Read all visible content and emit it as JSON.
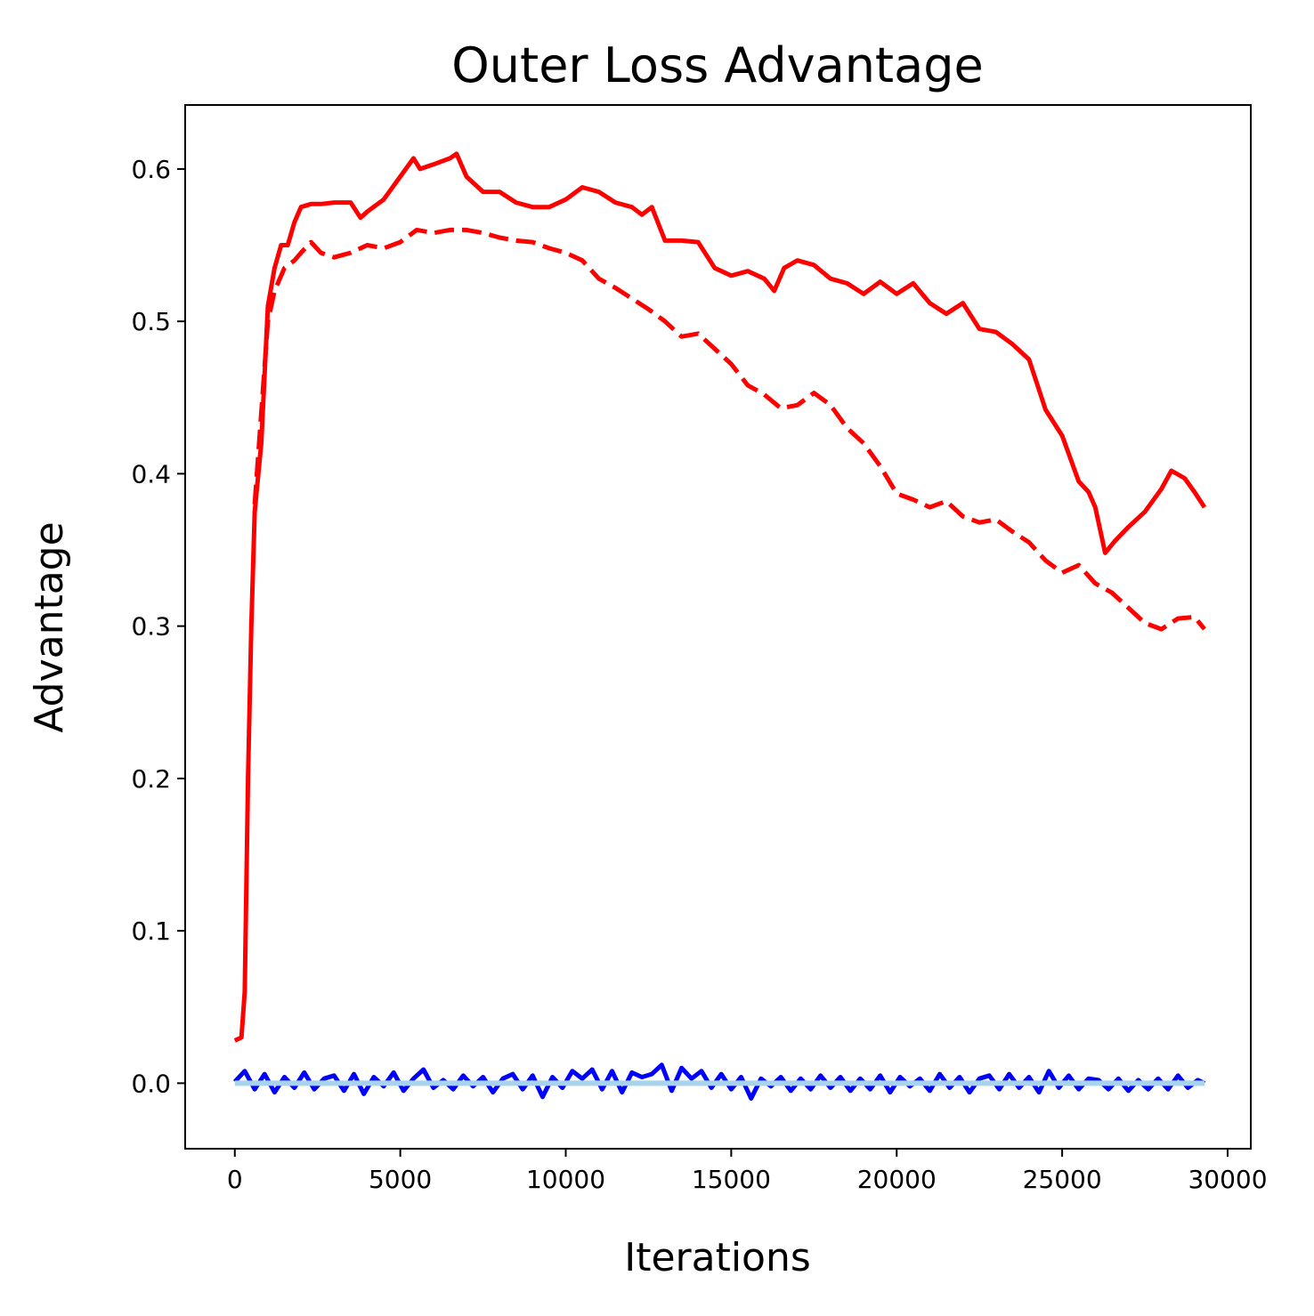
{
  "chart_data": {
    "type": "line",
    "title": "Outer Loss Advantage",
    "xlabel": "Iterations",
    "ylabel": "Advantage",
    "xlim": [
      -1500,
      30700
    ],
    "ylim": [
      -0.043,
      0.642
    ],
    "xticks": [
      0,
      5000,
      10000,
      15000,
      20000,
      25000,
      30000
    ],
    "yticks": [
      0.0,
      0.1,
      0.2,
      0.3,
      0.4,
      0.5,
      0.6
    ],
    "xtick_labels": [
      "0",
      "5000",
      "10000",
      "15000",
      "20000",
      "25000",
      "30000"
    ],
    "ytick_labels": [
      "0.0",
      "0.1",
      "0.2",
      "0.3",
      "0.4",
      "0.5",
      "0.6"
    ],
    "grid": false,
    "legend": "none",
    "series": [
      {
        "style": "solid",
        "color": "#ff0000",
        "x": [
          0,
          200,
          300,
          400,
          500,
          600,
          800,
          1000,
          1200,
          1400,
          1600,
          1800,
          2000,
          2300,
          2600,
          3000,
          3500,
          3800,
          4000,
          4500,
          5000,
          5400,
          5600,
          6000,
          6500,
          6700,
          7000,
          7500,
          8000,
          8500,
          9000,
          9500,
          10000,
          10500,
          11000,
          11500,
          12000,
          12300,
          12600,
          13000,
          13500,
          14000,
          14500,
          15000,
          15500,
          16000,
          16300,
          16600,
          17000,
          17500,
          18000,
          18500,
          19000,
          19500,
          20000,
          20500,
          21000,
          21500,
          22000,
          22500,
          23000,
          23500,
          24000,
          24500,
          25000,
          25500,
          25800,
          26000,
          26300,
          26600,
          27000,
          27500,
          28000,
          28300,
          28700,
          29000,
          29300
        ],
        "y": [
          0.028,
          0.03,
          0.06,
          0.2,
          0.3,
          0.375,
          0.42,
          0.51,
          0.535,
          0.55,
          0.55,
          0.565,
          0.575,
          0.577,
          0.577,
          0.578,
          0.578,
          0.568,
          0.572,
          0.58,
          0.595,
          0.607,
          0.6,
          0.603,
          0.607,
          0.61,
          0.595,
          0.585,
          0.585,
          0.578,
          0.575,
          0.575,
          0.58,
          0.588,
          0.585,
          0.578,
          0.575,
          0.57,
          0.575,
          0.553,
          0.553,
          0.552,
          0.535,
          0.53,
          0.533,
          0.528,
          0.52,
          0.535,
          0.54,
          0.537,
          0.528,
          0.525,
          0.518,
          0.526,
          0.518,
          0.525,
          0.512,
          0.505,
          0.512,
          0.495,
          0.493,
          0.485,
          0.475,
          0.442,
          0.425,
          0.395,
          0.388,
          0.378,
          0.348,
          0.356,
          0.365,
          0.375,
          0.39,
          0.402,
          0.397,
          0.388,
          0.378
        ]
      },
      {
        "style": "dashed",
        "color": "#ff0000",
        "x": [
          600,
          800,
          1000,
          1200,
          1500,
          1800,
          2000,
          2300,
          2600,
          3000,
          3500,
          4000,
          4500,
          5000,
          5500,
          6000,
          6500,
          7000,
          7500,
          8000,
          8500,
          9000,
          9500,
          10000,
          10500,
          11000,
          11500,
          12000,
          12500,
          13000,
          13500,
          14000,
          14500,
          15000,
          15500,
          16000,
          16500,
          17000,
          17500,
          18000,
          18500,
          19000,
          19500,
          20000,
          20500,
          21000,
          21500,
          22000,
          22500,
          23000,
          23500,
          24000,
          24500,
          25000,
          25500,
          26000,
          26500,
          27000,
          27500,
          28000,
          28500,
          29000,
          29300
        ],
        "y": [
          0.38,
          0.44,
          0.5,
          0.52,
          0.535,
          0.54,
          0.545,
          0.552,
          0.545,
          0.542,
          0.545,
          0.55,
          0.548,
          0.552,
          0.56,
          0.558,
          0.56,
          0.56,
          0.558,
          0.555,
          0.553,
          0.552,
          0.548,
          0.545,
          0.54,
          0.528,
          0.522,
          0.515,
          0.508,
          0.5,
          0.49,
          0.492,
          0.482,
          0.472,
          0.458,
          0.452,
          0.443,
          0.445,
          0.453,
          0.445,
          0.43,
          0.42,
          0.405,
          0.387,
          0.383,
          0.378,
          0.382,
          0.372,
          0.368,
          0.37,
          0.362,
          0.355,
          0.343,
          0.335,
          0.34,
          0.328,
          0.322,
          0.312,
          0.302,
          0.298,
          0.305,
          0.306,
          0.298
        ]
      },
      {
        "style": "noisy",
        "color": "#0000ff",
        "x": [
          0,
          300,
          600,
          900,
          1200,
          1500,
          1800,
          2100,
          2400,
          2700,
          3000,
          3300,
          3600,
          3900,
          4200,
          4500,
          4800,
          5100,
          5400,
          5700,
          6000,
          6300,
          6600,
          6900,
          7200,
          7500,
          7800,
          8100,
          8400,
          8700,
          9000,
          9300,
          9600,
          9900,
          10200,
          10500,
          10800,
          11100,
          11400,
          11700,
          12000,
          12300,
          12600,
          12900,
          13200,
          13500,
          13800,
          14100,
          14400,
          14700,
          15000,
          15300,
          15600,
          15900,
          16200,
          16500,
          16800,
          17100,
          17400,
          17700,
          18000,
          18300,
          18600,
          18900,
          19200,
          19500,
          19800,
          20100,
          20400,
          20700,
          21000,
          21300,
          21600,
          21900,
          22200,
          22500,
          22800,
          23100,
          23400,
          23700,
          24000,
          24300,
          24600,
          24900,
          25200,
          25500,
          25800,
          26100,
          26400,
          26700,
          27000,
          27300,
          27600,
          27900,
          28200,
          28500,
          28800,
          29100,
          29300
        ],
        "y": [
          0.001,
          0.008,
          -0.004,
          0.006,
          -0.006,
          0.004,
          -0.003,
          0.007,
          -0.004,
          0.003,
          0.005,
          -0.005,
          0.006,
          -0.007,
          0.004,
          -0.002,
          0.007,
          -0.005,
          0.003,
          0.009,
          -0.003,
          0.002,
          -0.004,
          0.005,
          -0.002,
          0.004,
          -0.006,
          0.003,
          0.006,
          -0.004,
          0.005,
          -0.009,
          0.004,
          -0.003,
          0.008,
          0.003,
          0.009,
          -0.004,
          0.008,
          -0.006,
          0.007,
          0.004,
          0.006,
          0.012,
          -0.005,
          0.01,
          0.003,
          0.008,
          -0.003,
          0.006,
          -0.004,
          0.004,
          -0.01,
          0.003,
          -0.002,
          0.004,
          -0.005,
          0.003,
          -0.004,
          0.005,
          -0.003,
          0.004,
          -0.005,
          0.003,
          -0.004,
          0.005,
          -0.006,
          0.004,
          -0.002,
          0.003,
          -0.005,
          0.006,
          -0.003,
          0.004,
          -0.006,
          0.003,
          0.005,
          -0.004,
          0.006,
          -0.003,
          0.004,
          -0.006,
          0.008,
          -0.003,
          0.005,
          -0.004,
          0.003,
          0.002,
          -0.004,
          0.003,
          -0.005,
          0.002,
          -0.004,
          0.003,
          -0.004,
          0.005,
          -0.003,
          0.002,
          0.0
        ]
      },
      {
        "style": "baseline",
        "color": "#a6d4ec",
        "x": [
          0,
          29300
        ],
        "y": [
          0.0,
          0.0
        ]
      }
    ]
  }
}
